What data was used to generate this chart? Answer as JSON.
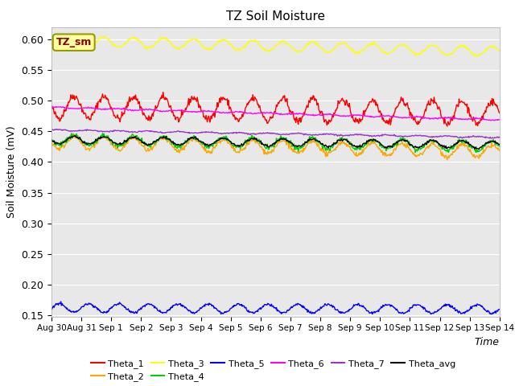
{
  "title": "TZ Soil Moisture",
  "xlabel": "Time",
  "ylabel": "Soil Moisture (mV)",
  "annotation": "TZ_sm",
  "ylim": [
    0.148,
    0.62
  ],
  "yticks": [
    0.15,
    0.2,
    0.25,
    0.3,
    0.35,
    0.4,
    0.45,
    0.5,
    0.55,
    0.6
  ],
  "xtick_labels": [
    "Aug 30",
    "Aug 31",
    "Sep 1",
    "Sep 2",
    "Sep 3",
    "Sep 4",
    "Sep 5",
    "Sep 6",
    "Sep 7",
    "Sep 8",
    "Sep 9",
    "Sep 10",
    "Sep 11",
    "Sep 12",
    "Sep 13",
    "Sep 14"
  ],
  "series": {
    "Theta_1": {
      "color": "#FF0000",
      "base": 0.49,
      "amplitude": 0.018,
      "trend": -0.01,
      "noise": 0.003,
      "freq": 1.0,
      "phase": 3.14
    },
    "Theta_2": {
      "color": "#FFA500",
      "base": 0.432,
      "amplitude": 0.01,
      "trend": -0.015,
      "noise": 0.002,
      "freq": 1.0,
      "phase": 3.14
    },
    "Theta_3": {
      "color": "#FFFF00",
      "base": 0.598,
      "amplitude": 0.008,
      "trend": -0.018,
      "noise": 0.001,
      "freq": 1.0,
      "phase": 3.14
    },
    "Theta_4": {
      "color": "#00CC00",
      "base": 0.436,
      "amplitude": 0.008,
      "trend": -0.01,
      "noise": 0.002,
      "freq": 1.0,
      "phase": 3.14
    },
    "Theta_5": {
      "color": "#0000FF",
      "base": 0.162,
      "amplitude": 0.007,
      "trend": -0.002,
      "noise": 0.001,
      "freq": 1.0,
      "phase": 0.0
    },
    "Theta_6": {
      "color": "#FF00FF",
      "base": 0.489,
      "amplitude": 0.001,
      "trend": -0.02,
      "noise": 0.0005,
      "freq": 1.0,
      "phase": 0.0
    },
    "Theta_7": {
      "color": "#9933CC",
      "base": 0.452,
      "amplitude": 0.001,
      "trend": -0.012,
      "noise": 0.0005,
      "freq": 1.0,
      "phase": 0.0
    },
    "Theta_avg": {
      "color": "#000000",
      "base": 0.436,
      "amplitude": 0.006,
      "trend": -0.008,
      "noise": 0.001,
      "freq": 1.0,
      "phase": 3.14
    }
  },
  "legend_order": [
    "Theta_1",
    "Theta_2",
    "Theta_3",
    "Theta_4",
    "Theta_5",
    "Theta_6",
    "Theta_7",
    "Theta_avg"
  ],
  "bg_color": "#E8E8E8",
  "n_days": 15,
  "n_points_per_day": 48
}
